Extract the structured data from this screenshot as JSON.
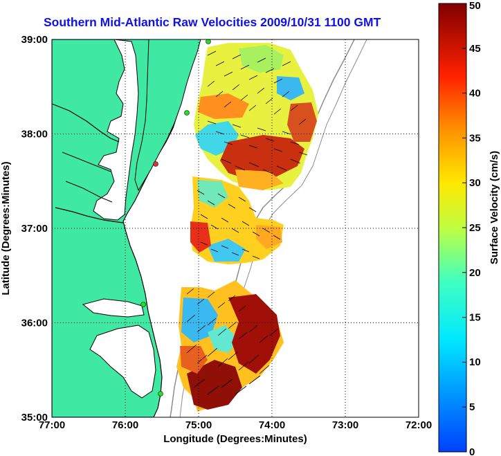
{
  "title": "Southern Mid-Atlantic Raw Velocities 2009/10/31 1100 GMT",
  "xlabel": "Longitude (Degrees:Minutes)",
  "ylabel": "Latitude (Degrees:Minutes)",
  "x_ticks": [
    "77:00",
    "76:00",
    "75:00",
    "74:00",
    "73:00",
    "72:00"
  ],
  "y_ticks": [
    "39:00",
    "38:00",
    "37:00",
    "36:00",
    "35:00"
  ],
  "colorbar": {
    "label": "Surface Velocity (cm/s)",
    "ticks": [
      "0",
      "5",
      "10",
      "15",
      "20",
      "25",
      "30",
      "35",
      "40",
      "45",
      "50"
    ],
    "min": 0,
    "max": 50
  },
  "colors": {
    "land": "#3fe8a3",
    "coast": "#000000",
    "isobath": "#8c8c8c",
    "station_marker": "#22e022",
    "station_marker_alt": "#e03030",
    "title": "#1010e8"
  },
  "grid": "dotted"
}
